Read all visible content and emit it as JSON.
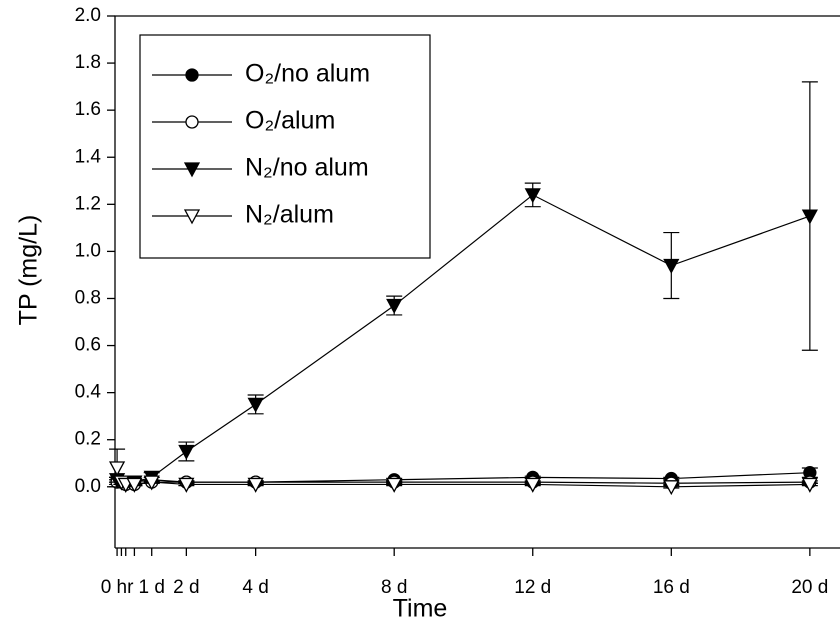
{
  "chart_data": {
    "type": "line",
    "x_label": "Time",
    "y_label": "TP (mg/L)",
    "x": [
      0,
      0.125,
      0.25,
      0.5,
      1,
      2,
      4,
      8,
      12,
      16,
      20
    ],
    "xlim": [
      -0.06,
      20.87
    ],
    "xticks": [
      {
        "value": 0,
        "label": "0 hr"
      },
      {
        "value": 1,
        "label": "1 d"
      },
      {
        "value": 2,
        "label": "2 d"
      },
      {
        "value": 4,
        "label": "4 d"
      },
      {
        "value": 8,
        "label": "8 d"
      },
      {
        "value": 12,
        "label": "12 d"
      },
      {
        "value": 16,
        "label": "16 d"
      },
      {
        "value": 20,
        "label": "20 d"
      }
    ],
    "xminorticks": [
      0.125,
      0.25,
      0.5
    ],
    "ylim": [
      -0.26,
      2.0
    ],
    "yticks": [
      {
        "value": 0,
        "label": "0.0"
      },
      0.2,
      0.4,
      0.6,
      0.8,
      {
        "value": 1,
        "label": "1.0"
      },
      1.2,
      1.4,
      1.6,
      1.8,
      {
        "value": 2,
        "label": "2.0"
      }
    ],
    "legend": "upper left",
    "series": [
      {
        "name": "O₂/no alum",
        "marker": "circle",
        "filled": true,
        "color": "#000000",
        "values": [
          0.03,
          0.02,
          0.02,
          0.02,
          0.03,
          0.02,
          0.02,
          0.03,
          0.04,
          0.035,
          0.06
        ],
        "errors": [
          0.01,
          0.005,
          0.005,
          0.005,
          0.01,
          0.005,
          0.005,
          0.005,
          0.005,
          0.005,
          0.02
        ]
      },
      {
        "name": "O₂/alum",
        "marker": "circle",
        "filled": false,
        "color": "#000000",
        "values": [
          0.02,
          0.02,
          0.01,
          0.01,
          0.02,
          0.02,
          0.02,
          0.02,
          0.02,
          0.015,
          0.02
        ],
        "errors": [
          0.01,
          0.005,
          0.005,
          0.005,
          0.005,
          0.005,
          0.005,
          0.005,
          0.005,
          0.005,
          0.005
        ]
      },
      {
        "name": "N₂/no alum",
        "marker": "triangle-down",
        "filled": true,
        "color": "#000000",
        "values": [
          0.03,
          0.02,
          0.01,
          0.02,
          0.04,
          0.15,
          0.35,
          0.77,
          1.24,
          0.94,
          1.15
        ],
        "errors": [
          0.01,
          0.01,
          0.01,
          0.01,
          0.02,
          0.04,
          0.04,
          0.04,
          0.05,
          0.14,
          0.57
        ]
      },
      {
        "name": "N₂/alum",
        "marker": "triangle-down",
        "filled": false,
        "color": "#000000",
        "values": [
          0.08,
          0.02,
          0.01,
          0.01,
          0.02,
          0.01,
          0.01,
          0.01,
          0.01,
          0.0,
          0.01
        ],
        "errors": [
          0.08,
          0.01,
          0.005,
          0.005,
          0.005,
          0.005,
          0.005,
          0.005,
          0.005,
          0.005,
          0.005
        ]
      }
    ]
  }
}
